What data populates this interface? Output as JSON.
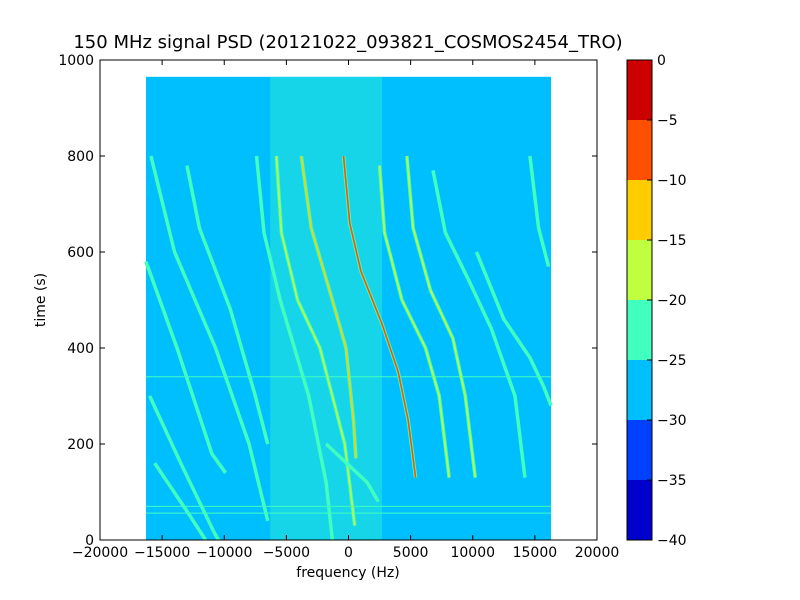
{
  "chart_data": {
    "type": "heatmap",
    "title": "150 MHz signal PSD (20121022_093821_COSMOS2454_TRO)",
    "xlabel": "frequency (Hz)",
    "ylabel": "time (s)",
    "xlim": [
      -20000,
      20000
    ],
    "ylim": [
      0,
      1000
    ],
    "x_ticks": [
      -20000,
      -15000,
      -10000,
      -5000,
      0,
      5000,
      10000,
      15000,
      20000
    ],
    "x_tick_labels": [
      "−20000",
      "−15000",
      "−10000",
      "−5000",
      "0",
      "5000",
      "10000",
      "15000",
      "20000"
    ],
    "y_ticks": [
      0,
      200,
      400,
      600,
      800,
      1000
    ],
    "y_tick_labels": [
      "0",
      "200",
      "400",
      "600",
      "800",
      "1000"
    ],
    "data_extent": {
      "x": [
        -16300,
        16300
      ],
      "y": [
        0,
        965
      ]
    },
    "background_level": -27.5,
    "central_band": {
      "center_hz": -1800,
      "halfwidth_hz": 4500,
      "level": -22.5
    },
    "horizontal_lines_s": [
      56,
      70,
      340
    ],
    "colorbar": {
      "range": [
        -40,
        0
      ],
      "ticks": [
        0,
        -5,
        -10,
        -15,
        -20,
        -25,
        -30,
        -35,
        -40
      ],
      "tick_labels": [
        "0",
        "−5",
        "−10",
        "−15",
        "−20",
        "−25",
        "−30",
        "−35",
        "−40"
      ],
      "levels": [
        {
          "range": [
            -40,
            -35
          ],
          "color": "#0000cc"
        },
        {
          "range": [
            -35,
            -30
          ],
          "color": "#0040ff"
        },
        {
          "range": [
            -30,
            -25
          ],
          "color": "#00bfff"
        },
        {
          "range": [
            -25,
            -20
          ],
          "color": "#40ffbf"
        },
        {
          "range": [
            -20,
            -15
          ],
          "color": "#bfff40"
        },
        {
          "range": [
            -15,
            -10
          ],
          "color": "#ffcc00"
        },
        {
          "range": [
            -10,
            -5
          ],
          "color": "#ff5000"
        },
        {
          "range": [
            -5,
            0
          ],
          "color": "#cc0000"
        }
      ]
    },
    "series": [
      {
        "points": [
          [
            -16000,
            300
          ],
          [
            -13500,
            160
          ],
          [
            -10800,
            15
          ],
          [
            -9800,
            -30
          ]
        ],
        "level": -22.5
      },
      {
        "points": [
          [
            -16300,
            580
          ],
          [
            -13800,
            400
          ],
          [
            -11000,
            180
          ],
          [
            -9900,
            140
          ]
        ],
        "level": -22.5
      },
      {
        "points": [
          [
            -15900,
            800
          ],
          [
            -14000,
            600
          ],
          [
            -10700,
            400
          ],
          [
            -8000,
            200
          ],
          [
            -6500,
            40
          ]
        ],
        "level": -22.5
      },
      {
        "points": [
          [
            -13000,
            780
          ],
          [
            -12000,
            650
          ],
          [
            -9500,
            480
          ],
          [
            -7500,
            300
          ],
          [
            -6500,
            200
          ]
        ],
        "level": -22.5
      },
      {
        "points": [
          [
            -7400,
            800
          ],
          [
            -6800,
            640
          ],
          [
            -5500,
            500
          ],
          [
            -3200,
            300
          ],
          [
            -1800,
            120
          ],
          [
            -1300,
            0
          ]
        ],
        "level": -22.5
      },
      {
        "points": [
          [
            -5800,
            800
          ],
          [
            -5400,
            640
          ],
          [
            -4100,
            500
          ],
          [
            -2300,
            400
          ],
          [
            -300,
            200
          ],
          [
            500,
            30
          ]
        ],
        "level": -17.5
      },
      {
        "points": [
          [
            -3800,
            800
          ],
          [
            -3000,
            650
          ],
          [
            -1300,
            500
          ],
          [
            -200,
            400
          ],
          [
            400,
            250
          ],
          [
            600,
            170
          ]
        ],
        "level": -12.5
      },
      {
        "points": [
          [
            -400,
            800
          ],
          [
            100,
            660
          ],
          [
            1000,
            560
          ],
          [
            2700,
            450
          ],
          [
            4000,
            350
          ],
          [
            4800,
            250
          ],
          [
            5400,
            130
          ]
        ],
        "level": -7.5
      },
      {
        "points": [
          [
            2500,
            780
          ],
          [
            2900,
            640
          ],
          [
            4300,
            500
          ],
          [
            6200,
            400
          ],
          [
            7300,
            300
          ],
          [
            8100,
            130
          ]
        ],
        "level": -17.5
      },
      {
        "points": [
          [
            4700,
            800
          ],
          [
            5200,
            650
          ],
          [
            6600,
            520
          ],
          [
            8400,
            420
          ],
          [
            9400,
            300
          ],
          [
            10200,
            130
          ]
        ],
        "level": -17.5
      },
      {
        "points": [
          [
            6800,
            770
          ],
          [
            7800,
            640
          ],
          [
            9700,
            540
          ],
          [
            11500,
            440
          ],
          [
            13400,
            300
          ],
          [
            14200,
            130
          ]
        ],
        "level": -22.5
      },
      {
        "points": [
          [
            14600,
            800
          ],
          [
            15300,
            650
          ],
          [
            16100,
            570
          ]
        ],
        "level": -22.5
      },
      {
        "points": [
          [
            10300,
            600
          ],
          [
            12500,
            460
          ],
          [
            14600,
            380
          ],
          [
            15700,
            320
          ],
          [
            16300,
            280
          ]
        ],
        "level": -22.5
      },
      {
        "points": [
          [
            -1800,
            200
          ],
          [
            1500,
            120
          ],
          [
            2400,
            80
          ]
        ],
        "level": -22.5
      },
      {
        "points": [
          [
            -15600,
            160
          ],
          [
            -13000,
            60
          ],
          [
            -11500,
            0
          ]
        ],
        "level": -22.5
      }
    ]
  }
}
